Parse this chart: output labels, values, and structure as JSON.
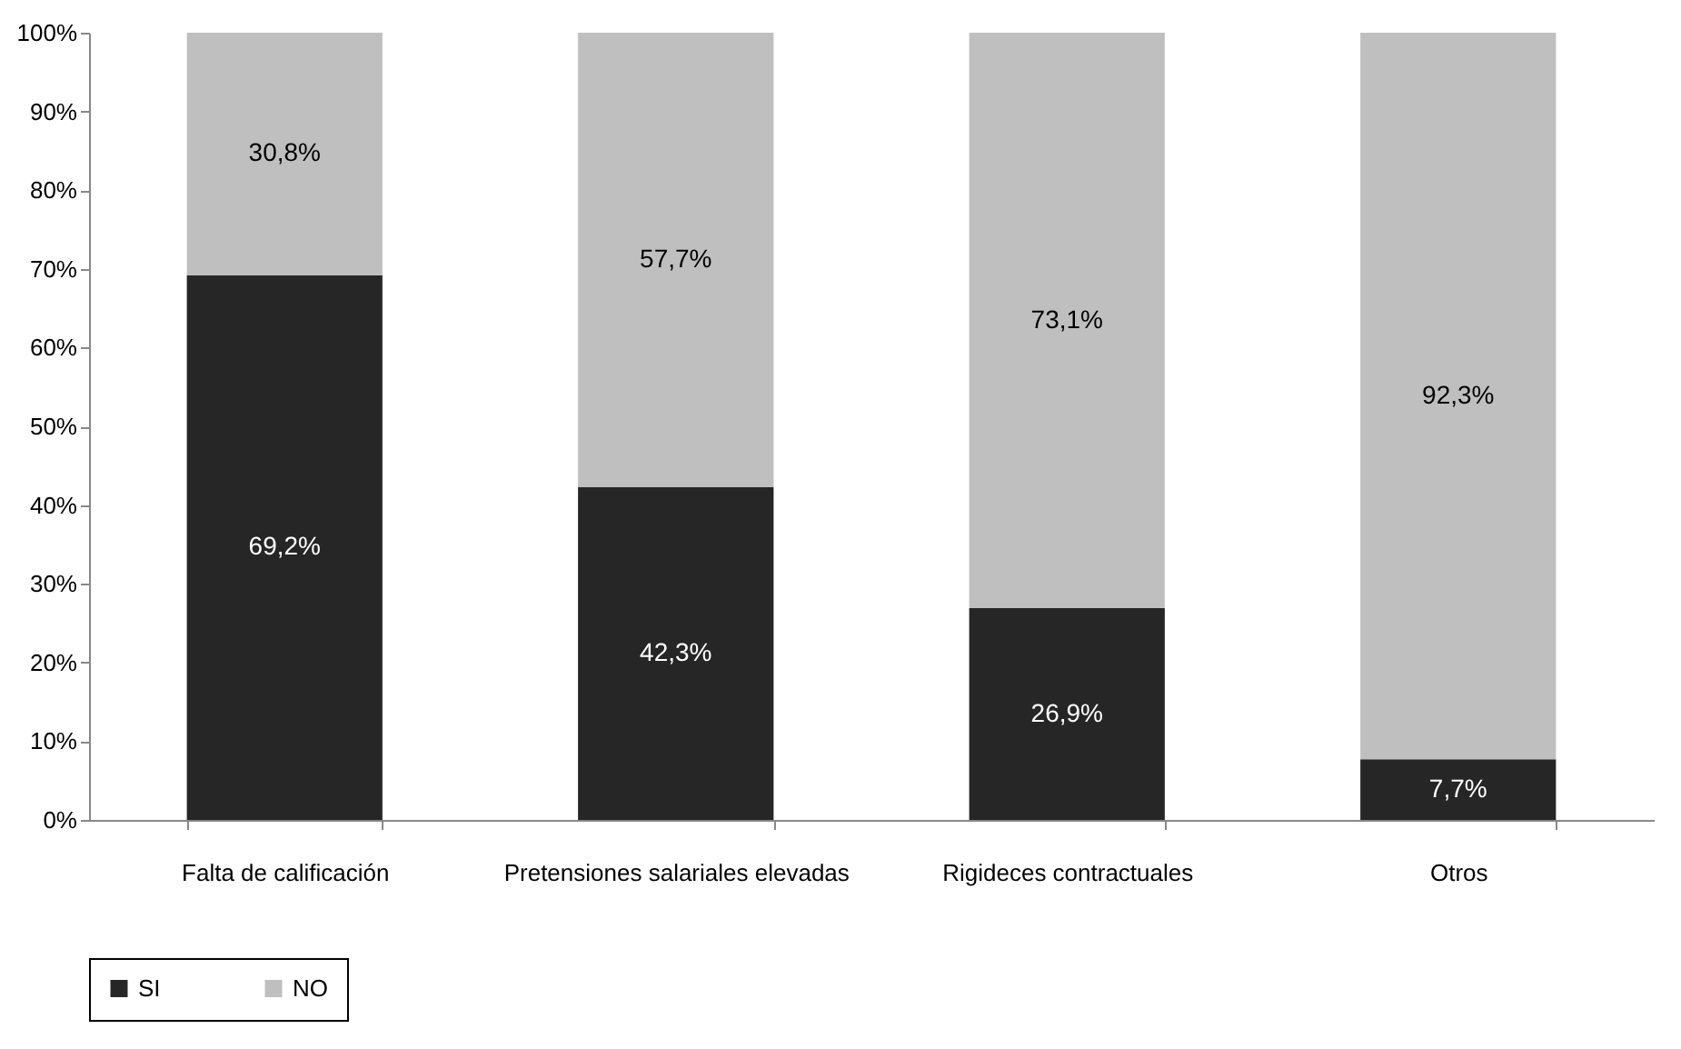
{
  "chart_data": {
    "type": "bar",
    "stacked": true,
    "categories": [
      "Falta de calificación",
      "Pretensiones salariales elevadas",
      "Rigideces contractuales",
      "Otros"
    ],
    "series": [
      {
        "name": "SI",
        "color": "#262626",
        "values": [
          69.2,
          42.3,
          26.9,
          7.7
        ],
        "value_labels": [
          "69,2%",
          "42,3%",
          "26,9%",
          "7,7%"
        ]
      },
      {
        "name": "NO",
        "color": "#bfbfbf",
        "values": [
          30.8,
          57.7,
          73.1,
          92.3
        ],
        "value_labels": [
          "30,8%",
          "57,7%",
          "73,1%",
          "92,3%"
        ]
      }
    ],
    "ylim": [
      0,
      100
    ],
    "yticks": [
      {
        "value": 0,
        "label": "0%"
      },
      {
        "value": 10,
        "label": "10%"
      },
      {
        "value": 20,
        "label": "20%"
      },
      {
        "value": 30,
        "label": "30%"
      },
      {
        "value": 40,
        "label": "40%"
      },
      {
        "value": 50,
        "label": "50%"
      },
      {
        "value": 60,
        "label": "60%"
      },
      {
        "value": 70,
        "label": "70%"
      },
      {
        "value": 80,
        "label": "80%"
      },
      {
        "value": 90,
        "label": "90%"
      },
      {
        "value": 100,
        "label": "100%"
      }
    ],
    "grid": false,
    "legend": "bottom"
  }
}
